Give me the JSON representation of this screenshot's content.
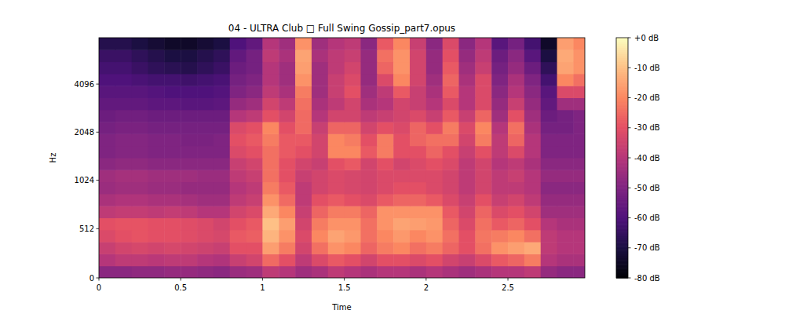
{
  "chart_data": {
    "type": "heatmap",
    "title": "04 - ULTRA Club □ Full Swing Gossip_part7.opus",
    "x_label": "Time",
    "y_label": "Hz",
    "log": "y",
    "xlim": [
      0,
      2.97
    ],
    "ylim": [
      0,
      8000
    ],
    "xticks": [
      0,
      0.5,
      1,
      1.5,
      2,
      2.5
    ],
    "yticks": [
      0,
      512,
      1024,
      2048,
      4096
    ],
    "x_edges": [
      0,
      0.1,
      0.2,
      0.3,
      0.4,
      0.5,
      0.6,
      0.7,
      0.8,
      0.9,
      1.0,
      1.1,
      1.2,
      1.3,
      1.4,
      1.5,
      1.6,
      1.7,
      1.8,
      1.9,
      2.0,
      2.1,
      2.2,
      2.3,
      2.4,
      2.5,
      2.6,
      2.7,
      2.8,
      2.9,
      2.97
    ],
    "y_edges": [
      0,
      125,
      250,
      375,
      500,
      625,
      750,
      875,
      1000,
      1189,
      1414,
      1682,
      2000,
      2378,
      2828,
      3364,
      4000,
      4757,
      5657,
      6727,
      8000
    ],
    "values": [
      [
        -48,
        -48,
        -47,
        -47,
        -46,
        -46,
        -47,
        -48,
        -45,
        -44,
        -38,
        -40,
        -44,
        -42,
        -38,
        -40,
        -42,
        -40,
        -40,
        -42,
        -40,
        -42,
        -44,
        -42,
        -40,
        -40,
        -38,
        -46,
        -48,
        -48
      ],
      [
        -40,
        -38,
        -38,
        -39,
        -38,
        -38,
        -40,
        -41,
        -36,
        -34,
        -25,
        -30,
        -38,
        -32,
        -28,
        -30,
        -34,
        -30,
        -30,
        -32,
        -30,
        -34,
        -36,
        -32,
        -28,
        -26,
        -22,
        -40,
        -42,
        -42
      ],
      [
        -36,
        -34,
        -33,
        -34,
        -33,
        -34,
        -35,
        -36,
        -30,
        -30,
        -16,
        -22,
        -34,
        -24,
        -18,
        -20,
        -26,
        -22,
        -20,
        -24,
        -22,
        -26,
        -30,
        -24,
        -18,
        -16,
        -14,
        -38,
        -40,
        -40
      ],
      [
        -32,
        -30,
        -29,
        -30,
        -30,
        -31,
        -32,
        -33,
        -28,
        -27,
        -12,
        -18,
        -32,
        -20,
        -15,
        -17,
        -24,
        -20,
        -17,
        -20,
        -18,
        -24,
        -30,
        -23,
        -22,
        -20,
        -24,
        -38,
        -40,
        -40
      ],
      [
        -30,
        -29,
        -29,
        -30,
        -30,
        -31,
        -32,
        -34,
        -30,
        -28,
        -10,
        -16,
        -34,
        -22,
        -18,
        -18,
        -24,
        -18,
        -15,
        -16,
        -17,
        -26,
        -32,
        -24,
        -28,
        -26,
        -30,
        -40,
        -42,
        -42
      ],
      [
        -38,
        -37,
        -37,
        -38,
        -37,
        -38,
        -40,
        -40,
        -34,
        -32,
        -14,
        -20,
        -36,
        -26,
        -22,
        -22,
        -26,
        -18,
        -18,
        -18,
        -18,
        -28,
        -34,
        -26,
        -32,
        -30,
        -34,
        -44,
        -44,
        -44
      ],
      [
        -42,
        -41,
        -41,
        -42,
        -42,
        -43,
        -44,
        -44,
        -38,
        -36,
        -18,
        -25,
        -38,
        -30,
        -28,
        -30,
        -32,
        -28,
        -26,
        -26,
        -28,
        -32,
        -36,
        -30,
        -36,
        -34,
        -38,
        -46,
        -46,
        -46
      ],
      [
        -45,
        -44,
        -44,
        -45,
        -45,
        -46,
        -46,
        -46,
        -40,
        -38,
        -22,
        -28,
        -38,
        -34,
        -32,
        -33,
        -34,
        -32,
        -30,
        -30,
        -32,
        -34,
        -38,
        -34,
        -38,
        -38,
        -40,
        -48,
        -48,
        -48
      ],
      [
        -44,
        -43,
        -43,
        -44,
        -44,
        -44,
        -45,
        -45,
        -38,
        -36,
        -24,
        -30,
        -36,
        -34,
        -32,
        -33,
        -34,
        -32,
        -32,
        -32,
        -32,
        -34,
        -38,
        -34,
        -38,
        -36,
        -40,
        -46,
        -46,
        -46
      ],
      [
        -48,
        -47,
        -47,
        -48,
        -48,
        -48,
        -48,
        -48,
        -36,
        -34,
        -24,
        -30,
        -34,
        -36,
        -30,
        -28,
        -34,
        -30,
        -34,
        -32,
        -30,
        -32,
        -38,
        -34,
        -40,
        -38,
        -42,
        -48,
        -48,
        -48
      ],
      [
        -50,
        -49,
        -49,
        -50,
        -50,
        -50,
        -50,
        -50,
        -32,
        -30,
        -24,
        -28,
        -30,
        -34,
        -20,
        -20,
        -28,
        -22,
        -30,
        -30,
        -26,
        -30,
        -36,
        -30,
        -38,
        -32,
        -40,
        -50,
        -50,
        -50
      ],
      [
        -50,
        -49,
        -49,
        -50,
        -50,
        -51,
        -51,
        -50,
        -30,
        -28,
        -22,
        -28,
        -28,
        -34,
        -20,
        -22,
        -30,
        -22,
        -30,
        -26,
        -24,
        -24,
        -34,
        -22,
        -38,
        -26,
        -40,
        -50,
        -50,
        -50
      ],
      [
        -52,
        -51,
        -51,
        -52,
        -52,
        -52,
        -52,
        -52,
        -32,
        -30,
        -20,
        -30,
        -25,
        -36,
        -26,
        -26,
        -34,
        -30,
        -32,
        -26,
        -30,
        -22,
        -32,
        -20,
        -40,
        -24,
        -42,
        -52,
        -52,
        -50
      ],
      [
        -54,
        -53,
        -53,
        -54,
        -54,
        -54,
        -54,
        -54,
        -40,
        -38,
        -30,
        -34,
        -25,
        -40,
        -34,
        -34,
        -38,
        -36,
        -34,
        -32,
        -36,
        -28,
        -36,
        -26,
        -44,
        -30,
        -44,
        -54,
        -52,
        -50
      ],
      [
        -56,
        -56,
        -56,
        -57,
        -57,
        -58,
        -58,
        -57,
        -46,
        -44,
        -34,
        -38,
        -24,
        -42,
        -38,
        -34,
        -42,
        -40,
        -34,
        -36,
        -40,
        -32,
        -40,
        -32,
        -46,
        -36,
        -46,
        -56,
        -44,
        -44
      ],
      [
        -58,
        -58,
        -58,
        -59,
        -60,
        -60,
        -60,
        -59,
        -50,
        -48,
        -38,
        -42,
        -22,
        -44,
        -36,
        -30,
        -44,
        -38,
        -28,
        -36,
        -42,
        -28,
        -40,
        -32,
        -48,
        -40,
        -48,
        -58,
        -32,
        -32
      ],
      [
        -60,
        -60,
        -61,
        -62,
        -62,
        -63,
        -62,
        -61,
        -52,
        -50,
        -40,
        -44,
        -18,
        -44,
        -36,
        -32,
        -46,
        -32,
        -20,
        -34,
        -44,
        -26,
        -42,
        -32,
        -50,
        -42,
        -50,
        -62,
        -20,
        -24
      ],
      [
        -62,
        -62,
        -64,
        -66,
        -67,
        -68,
        -66,
        -64,
        -54,
        -52,
        -40,
        -44,
        -16,
        -44,
        -38,
        -34,
        -46,
        -26,
        -18,
        -34,
        -46,
        -28,
        -44,
        -36,
        -52,
        -46,
        -54,
        -66,
        -15,
        -18
      ],
      [
        -64,
        -64,
        -66,
        -68,
        -70,
        -70,
        -68,
        -66,
        -56,
        -52,
        -38,
        -42,
        -15,
        -42,
        -38,
        -36,
        -46,
        -24,
        -18,
        -34,
        -46,
        -30,
        -46,
        -38,
        -54,
        -48,
        -58,
        -70,
        -14,
        -18
      ],
      [
        -68,
        -68,
        -70,
        -72,
        -74,
        -74,
        -72,
        -70,
        -60,
        -56,
        -40,
        -44,
        -18,
        -44,
        -40,
        -38,
        -48,
        -28,
        -20,
        -36,
        -48,
        -32,
        -48,
        -40,
        -58,
        -52,
        -62,
        -74,
        -16,
        -20
      ]
    ],
    "colorbar_range": [
      -80,
      0
    ],
    "colorbar_ticks": [
      {
        "value": 0,
        "label": "+0 dB"
      },
      {
        "value": -10,
        "label": "-10 dB"
      },
      {
        "value": -20,
        "label": "-20 dB"
      },
      {
        "value": -30,
        "label": "-30 dB"
      },
      {
        "value": -40,
        "label": "-40 dB"
      },
      {
        "value": -50,
        "label": "-50 dB"
      },
      {
        "value": -60,
        "label": "-60 dB"
      },
      {
        "value": -70,
        "label": "-70 dB"
      },
      {
        "value": -80,
        "label": "-80 dB"
      }
    ]
  }
}
